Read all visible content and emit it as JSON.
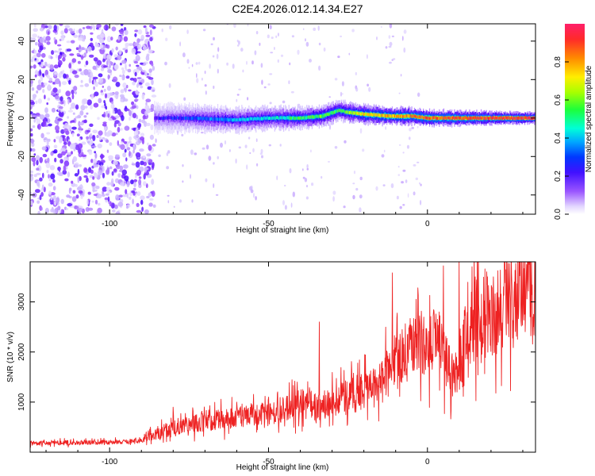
{
  "title": "C2E4.2026.012.14.34.E27",
  "chart_data": [
    {
      "type": "heatmap",
      "title": "",
      "xlabel": "Height of straight line (km)",
      "ylabel": "Frequency (Hz)",
      "xlim": [
        -125,
        34
      ],
      "ylim": [
        -50,
        49
      ],
      "xticks": [
        -100,
        -50,
        0
      ],
      "yticks": [
        -40,
        -20,
        0,
        20,
        40
      ],
      "noise_floor_region_km": [
        -125,
        -86
      ],
      "ridge_trace": {
        "height_km": [
          -86,
          -75,
          -60,
          -50,
          -40,
          -33,
          -28,
          -25,
          -20,
          -12,
          -5,
          0,
          10,
          20,
          34
        ],
        "frequency_hz": [
          0,
          0,
          -1,
          0,
          0,
          1,
          4,
          3,
          2,
          1,
          1,
          0,
          0,
          0,
          0
        ],
        "normalized_amplitude": [
          0.25,
          0.35,
          0.45,
          0.5,
          0.6,
          0.65,
          0.6,
          0.7,
          0.8,
          0.85,
          0.9,
          0.92,
          0.95,
          0.97,
          0.98
        ]
      },
      "colorbar": {
        "label": "Normalized spectral amplitude",
        "range": [
          0,
          1
        ],
        "ticks": [
          "0.0",
          "0.2",
          "0.4",
          "0.6",
          "0.8"
        ],
        "colormap": [
          "#ffffff",
          "#cdb8ff",
          "#8f3dff",
          "#3b00ff",
          "#0044ff",
          "#00aaff",
          "#00ffdd",
          "#22ff44",
          "#aaff00",
          "#ffee00",
          "#ff8800",
          "#ff2a2a",
          "#ff1f6a"
        ]
      }
    },
    {
      "type": "line",
      "title": "",
      "xlabel": "Height of straight line (km)",
      "ylabel": "SNR (10 * v/v)",
      "xlim": [
        -125,
        34
      ],
      "ylim": [
        0,
        3800
      ],
      "xticks": [
        -100,
        -50,
        0
      ],
      "yticks": [
        1000,
        2000,
        3000
      ],
      "series": [
        {
          "name": "SNR",
          "color": "#ee2222",
          "x": [
            -125,
            -110,
            -95,
            -90,
            -86,
            -80,
            -75,
            -70,
            -65,
            -60,
            -55,
            -50,
            -45,
            -41,
            -38,
            -35,
            -30,
            -25,
            -20,
            -15,
            -12,
            -10,
            -7,
            -5,
            -2,
            0,
            3,
            5,
            8,
            10,
            12,
            15,
            20,
            25,
            30,
            34
          ],
          "y": [
            180,
            190,
            200,
            230,
            350,
            500,
            550,
            600,
            650,
            700,
            750,
            800,
            850,
            950,
            1100,
            900,
            1000,
            1100,
            1200,
            1350,
            1650,
            1800,
            2000,
            2100,
            2150,
            2100,
            2300,
            2000,
            1500,
            1700,
            2300,
            2600,
            2800,
            2950,
            3100,
            3300
          ]
        }
      ],
      "peaks": {
        "x": [
          -80,
          -60,
          -50,
          -41,
          -34,
          -21,
          -11,
          -3,
          5,
          10,
          15,
          25,
          32
        ],
        "y": [
          900,
          1000,
          1100,
          1400,
          2600,
          1500,
          3580,
          3280,
          3720,
          3850,
          3500,
          3420,
          3750
        ]
      }
    }
  ]
}
